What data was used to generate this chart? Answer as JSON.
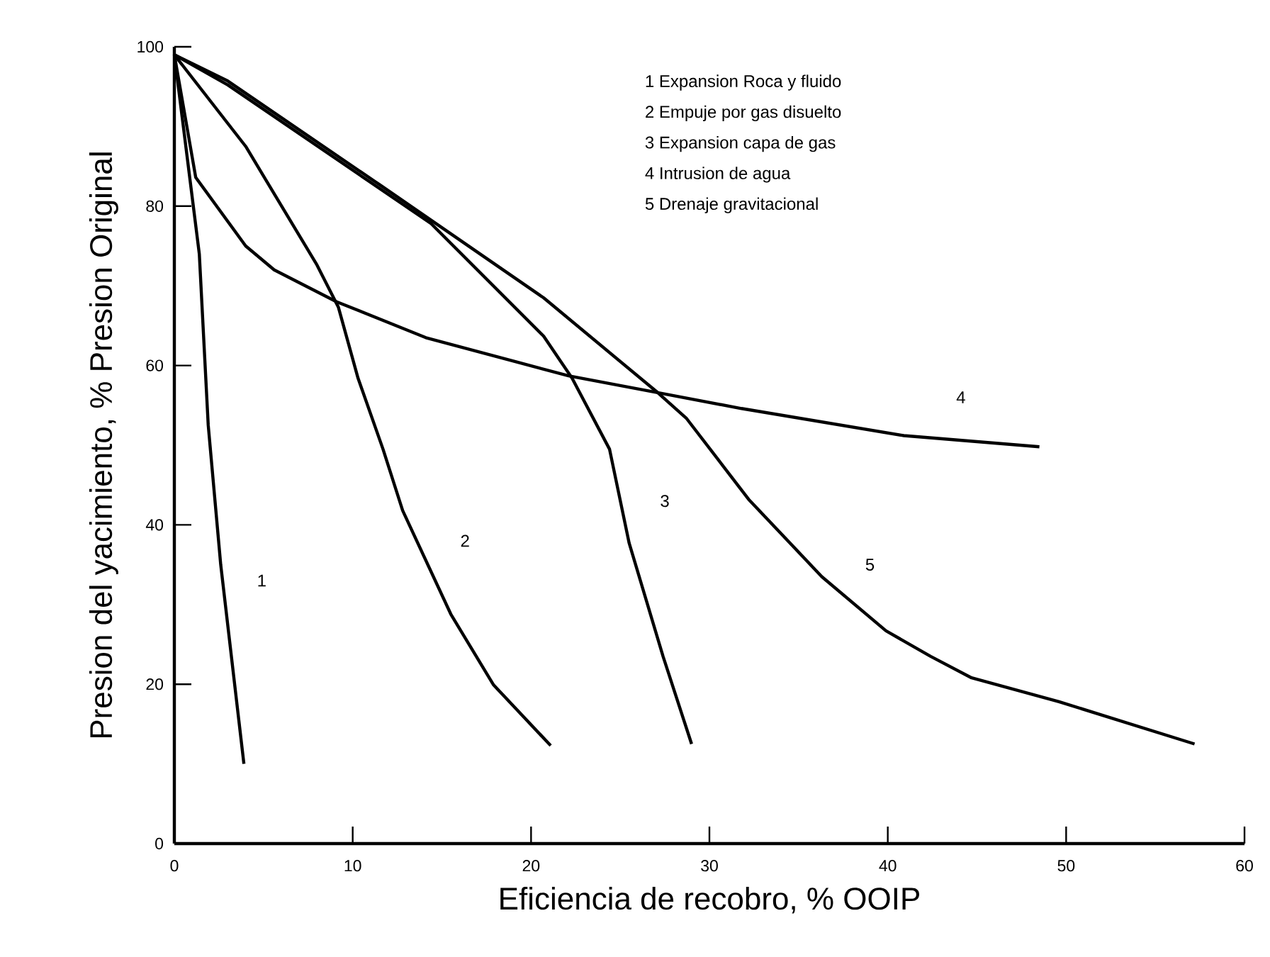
{
  "chart_data": {
    "type": "line",
    "xlabel": "Eficiencia de recobro, % OOIP",
    "ylabel": "Presion del yacimiento, % Presion Original",
    "xlim": [
      0,
      60
    ],
    "ylim": [
      0,
      100
    ],
    "xticks": [
      0,
      10,
      20,
      30,
      40,
      50,
      60
    ],
    "yticks": [
      0,
      20,
      40,
      60,
      80,
      100
    ],
    "series": [
      {
        "name": "1",
        "color": "#000000",
        "x": [
          0,
          1.4,
          1.9,
          2.6,
          3.9
        ],
        "values": [
          99,
          74,
          52.5,
          35,
          10
        ]
      },
      {
        "name": "2",
        "color": "#000000",
        "x": [
          0,
          4.0,
          8.0,
          9.2,
          10.3,
          11.7,
          12.8,
          15.5,
          17.9,
          21.1
        ],
        "values": [
          99,
          87.5,
          72.6,
          67.3,
          58.4,
          49.5,
          41.8,
          28.8,
          19.9,
          12.3
        ]
      },
      {
        "name": "3",
        "color": "#000000",
        "x": [
          0,
          3,
          14.4,
          20.7,
          22.3,
          24.4,
          25.5,
          27.4,
          29
        ],
        "values": [
          99,
          95.2,
          77.8,
          63.7,
          58.4,
          49.5,
          37.7,
          23.5,
          12.5
        ]
      },
      {
        "name": "4",
        "color": "#000000",
        "x": [
          0,
          1.2,
          4.0,
          5.6,
          9.1,
          14.1,
          22.1,
          27.1,
          31.8,
          40.9,
          48.5
        ],
        "values": [
          99,
          83.6,
          75,
          72,
          68,
          63.5,
          58.7,
          56.6,
          54.6,
          51.2,
          49.8
        ]
      },
      {
        "name": "5",
        "color": "#000000",
        "x": [
          0,
          3,
          11.5,
          20.7,
          27.1,
          28.7,
          32.2,
          36.3,
          39.9,
          42.4,
          44.7,
          49.6,
          57.2
        ],
        "values": [
          99,
          95.7,
          82.7,
          68.5,
          56.6,
          53.4,
          43.2,
          33.5,
          26.7,
          23.5,
          20.8,
          17.8,
          12.5
        ]
      }
    ],
    "annotations": [
      "1  Expansion Roca y fluido",
      "2  Empuje por gas disuelto",
      "3  Expansion capa de gas",
      "4  Intrusion de agua",
      "5  Drenaje gravitacional"
    ]
  }
}
